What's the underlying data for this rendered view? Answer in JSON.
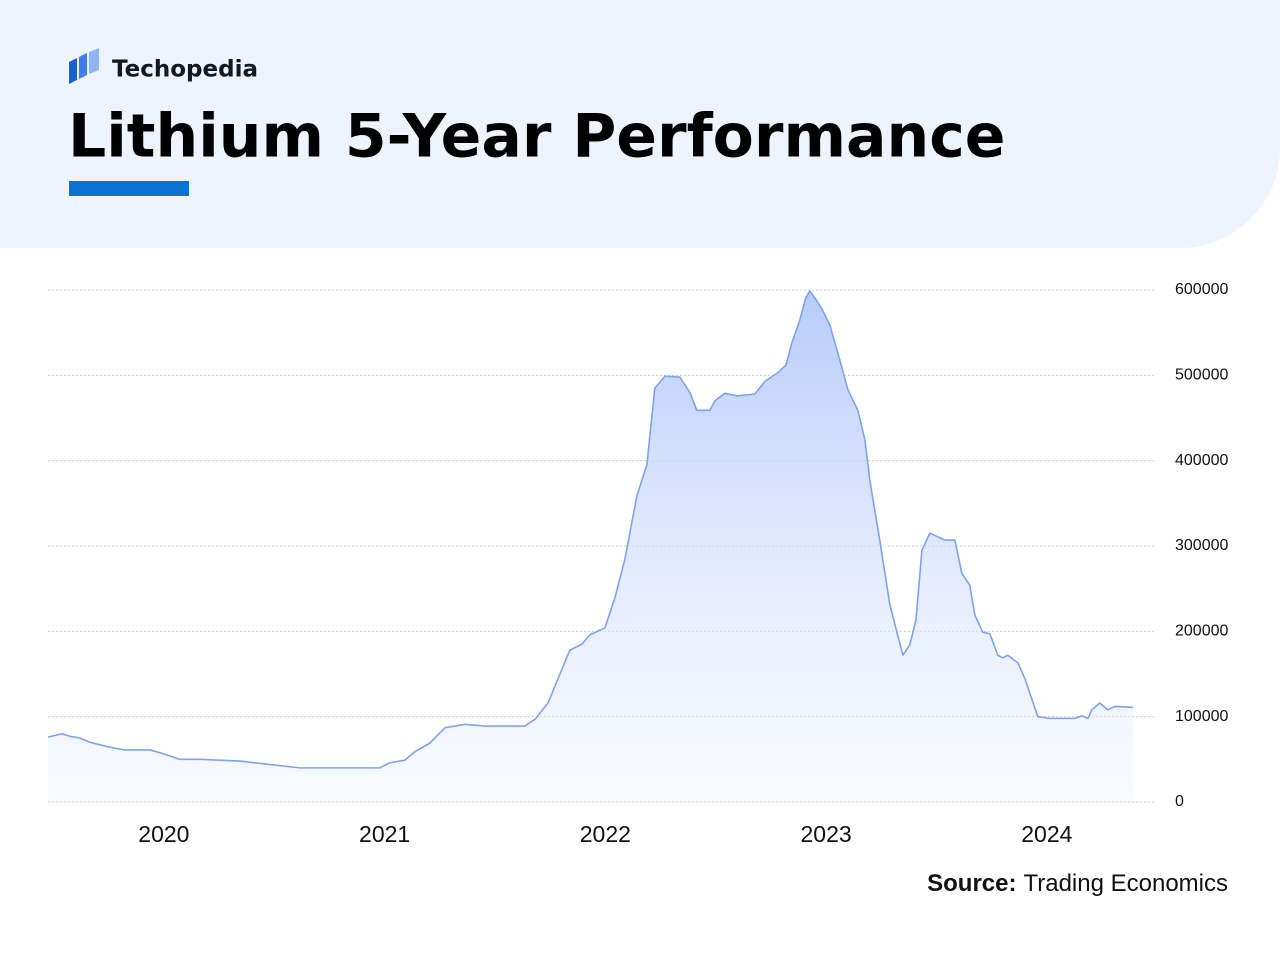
{
  "brand": "Techopedia",
  "source_label": "Source:",
  "source": "Trading Economics",
  "chart_data": {
    "type": "area",
    "title": "Lithium 5-Year Performance",
    "x": [
      2019.475,
      2019.538,
      2019.574,
      2019.619,
      2019.665,
      2019.71,
      2019.778,
      2019.823,
      2019.937,
      2020.005,
      2020.072,
      2020.163,
      2020.344,
      2020.616,
      2020.978,
      2021.024,
      2021.092,
      2021.137,
      2021.205,
      2021.273,
      2021.364,
      2021.454,
      2021.635,
      2021.681,
      2021.74,
      2021.839,
      2021.894,
      2021.93,
      2021.998,
      2022.043,
      2022.088,
      2022.143,
      2022.188,
      2022.224,
      2022.27,
      2022.337,
      2022.383,
      2022.414,
      2022.473,
      2022.496,
      2022.541,
      2022.596,
      2022.677,
      2022.723,
      2022.781,
      2022.818,
      2022.845,
      2022.881,
      2022.908,
      2022.926,
      2022.954,
      2022.981,
      2023.017,
      2023.062,
      2023.099,
      2023.144,
      2023.176,
      2023.198,
      2023.243,
      2023.289,
      2023.348,
      2023.379,
      2023.407,
      2023.434,
      2023.47,
      2023.538,
      2023.583,
      2023.615,
      2023.651,
      2023.674,
      2023.71,
      2023.742,
      2023.778,
      2023.801,
      2023.823,
      2023.869,
      2023.9,
      2023.959,
      2024.014,
      2024.127,
      2024.159,
      2024.186,
      2024.204,
      2024.24,
      2024.276,
      2024.308,
      2024.39
    ],
    "series": [
      {
        "name": "Lithium",
        "color": "#7ea3ee",
        "values": [
          76000,
          80000,
          77000,
          75000,
          70000,
          67000,
          63000,
          61000,
          61000,
          56000,
          50000,
          50000,
          48000,
          40000,
          40000,
          46000,
          49000,
          59000,
          69000,
          87000,
          91000,
          89000,
          89000,
          97000,
          116000,
          178000,
          185000,
          196000,
          204000,
          239000,
          284000,
          359000,
          395000,
          485000,
          499000,
          498000,
          480000,
          459000,
          459000,
          470000,
          479000,
          476000,
          478000,
          493000,
          503000,
          512000,
          538000,
          565000,
          591000,
          599000,
          589000,
          578000,
          559000,
          518000,
          483000,
          459000,
          424000,
          377000,
          307000,
          231000,
          172000,
          184000,
          213000,
          295000,
          315000,
          307000,
          307000,
          268000,
          254000,
          219000,
          199000,
          197000,
          172000,
          169000,
          172000,
          163000,
          145000,
          100000,
          98000,
          98000,
          101000,
          98000,
          108000,
          116000,
          108000,
          112000,
          111000
        ]
      }
    ],
    "xlim": [
      2019.475,
      2024.49
    ],
    "xticks": [
      2020,
      2021,
      2022,
      2023,
      2024
    ],
    "ylim": [
      0,
      600000
    ],
    "yticks": [
      0,
      100000,
      200000,
      300000,
      400000,
      500000,
      600000
    ],
    "grid": true
  }
}
